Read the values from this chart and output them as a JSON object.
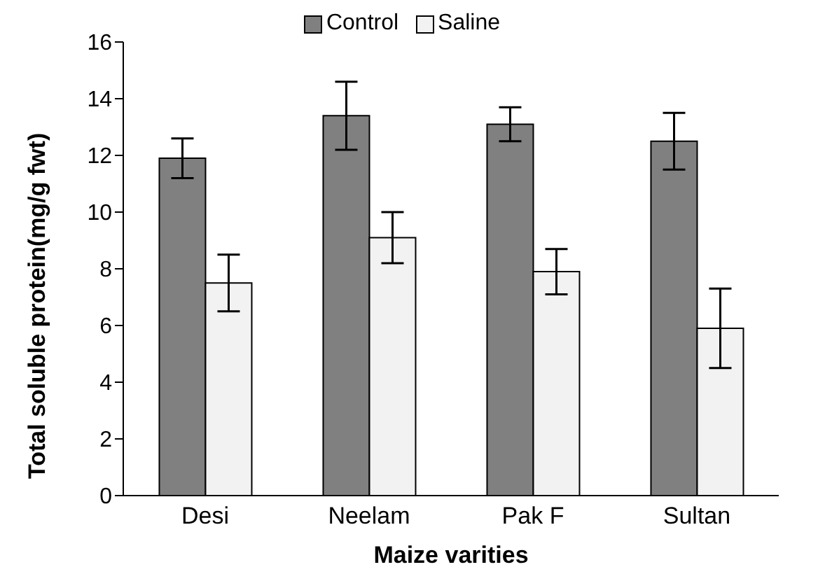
{
  "chart_data": {
    "type": "bar",
    "xlabel": "Maize varities",
    "ylabel": "Total soluble protein(mg/g fwt)",
    "categories": [
      "Desi",
      "Neelam",
      "Pak F",
      "Sultan"
    ],
    "series": [
      {
        "name": "Control",
        "color": "#808080",
        "values": [
          11.9,
          13.4,
          13.1,
          12.5
        ],
        "errors": [
          0.7,
          1.2,
          0.6,
          1.0
        ]
      },
      {
        "name": "Saline",
        "color": "#f2f2f2",
        "values": [
          7.5,
          9.1,
          7.9,
          5.9
        ],
        "errors": [
          1.0,
          0.9,
          0.8,
          1.4
        ]
      }
    ],
    "ylim": [
      0,
      16
    ],
    "yticks": [
      0,
      2,
      4,
      6,
      8,
      10,
      12,
      14,
      16
    ],
    "grid": false,
    "legend": "top"
  }
}
